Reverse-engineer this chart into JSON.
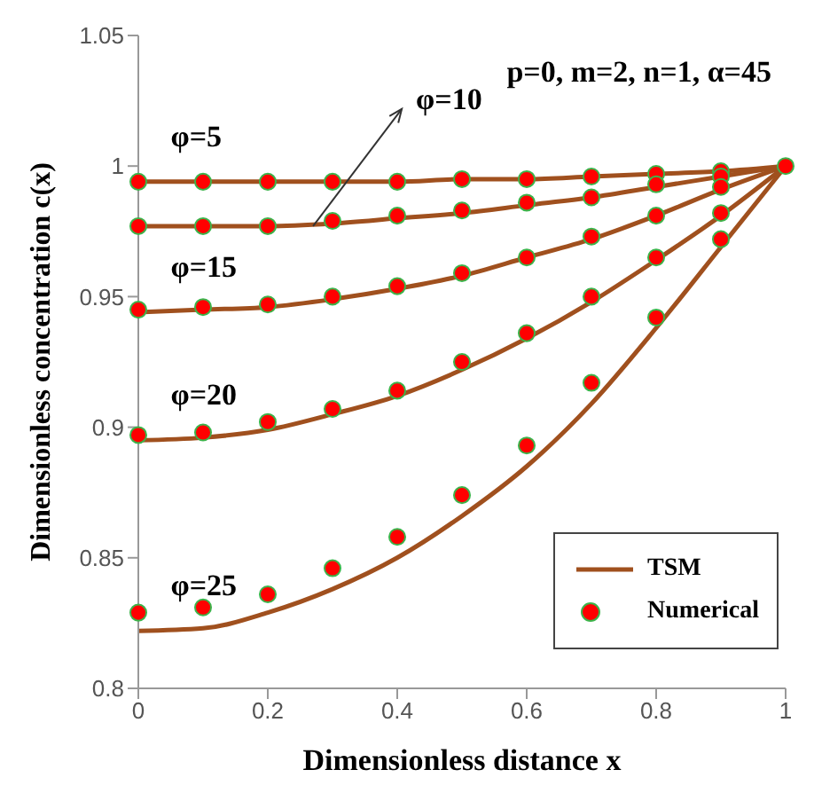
{
  "chart_data": {
    "type": "line",
    "xlabel": "Dimensionless distance x",
    "ylabel": "Dimensionless concentration c(x)",
    "x": [
      0,
      0.1,
      0.2,
      0.3,
      0.4,
      0.5,
      0.6,
      0.7,
      0.8,
      0.9,
      1
    ],
    "xlim": [
      0,
      1
    ],
    "xticks": [
      0,
      0.2,
      0.4,
      0.6,
      0.8,
      1
    ],
    "ylim": [
      0.8,
      1.05
    ],
    "yticks": [
      0.8,
      0.85,
      0.9,
      0.95,
      1,
      1.05
    ],
    "grid": false,
    "legend": "bottom right",
    "line_style": "solid",
    "series": [
      {
        "name": "TSM",
        "color": "#a0501e",
        "values": [
          0.994,
          0.994,
          0.994,
          0.994,
          0.994,
          0.995,
          0.995,
          0.996,
          0.997,
          0.998,
          1
        ]
      },
      {
        "color": "#a0501e",
        "values": [
          0.977,
          0.977,
          0.977,
          0.978,
          0.98,
          0.982,
          0.985,
          0.988,
          0.992,
          0.996,
          1
        ]
      },
      {
        "color": "#a0501e",
        "values": [
          0.944,
          0.945,
          0.946,
          0.949,
          0.953,
          0.958,
          0.965,
          0.972,
          0.981,
          0.991,
          1
        ]
      },
      {
        "color": "#a0501e",
        "values": [
          0.895,
          0.896,
          0.899,
          0.905,
          0.912,
          0.922,
          0.934,
          0.948,
          0.964,
          0.981,
          1
        ]
      },
      {
        "color": "#a0501e",
        "values": [
          0.822,
          0.823,
          0.829,
          0.838,
          0.85,
          0.866,
          0.885,
          0.909,
          0.938,
          0.969,
          1
        ]
      },
      {
        "type": "scatter",
        "marker": "circle",
        "name": "Numerical",
        "color": "#ff0000",
        "values": [
          0.994,
          0.994,
          0.994,
          0.994,
          0.994,
          0.995,
          0.995,
          0.996,
          0.997,
          0.998,
          1
        ]
      },
      {
        "type": "scatter",
        "marker": "circle",
        "color": "#ff0000",
        "values": [
          0.977,
          0.977,
          0.977,
          0.979,
          0.981,
          0.983,
          0.986,
          0.988,
          0.993,
          0.996,
          null
        ]
      },
      {
        "type": "scatter",
        "marker": "circle",
        "color": "#ff0000",
        "values": [
          0.945,
          0.946,
          0.947,
          0.95,
          0.954,
          0.959,
          0.965,
          0.973,
          0.981,
          0.992,
          null
        ]
      },
      {
        "type": "scatter",
        "marker": "circle",
        "color": "#ff0000",
        "values": [
          0.897,
          0.898,
          0.902,
          0.907,
          0.914,
          0.925,
          0.936,
          0.95,
          0.965,
          0.982,
          null
        ]
      },
      {
        "type": "scatter",
        "marker": "circle",
        "color": "#ff0000",
        "values": [
          0.829,
          0.831,
          0.836,
          0.846,
          0.858,
          0.874,
          0.893,
          0.917,
          0.942,
          0.972,
          null
        ]
      }
    ],
    "annotations": [
      "p=0, m=2, n=1, α=45",
      "φ=5",
      {
        "text": "φ=10",
        "x": 0.27,
        "y": 0.977
      },
      "φ=15",
      "φ=20",
      "φ=25"
    ]
  }
}
